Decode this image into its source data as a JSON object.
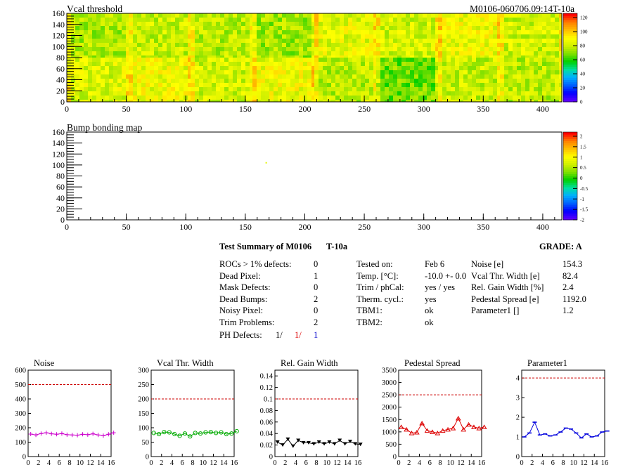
{
  "header": {
    "vcal_title": "Vcal threshold",
    "module_label": "M0106-060706.09:14T-10a",
    "bump_title": "Bump bonding map"
  },
  "maps": {
    "x_ticks": [
      0,
      50,
      100,
      150,
      200,
      250,
      300,
      350,
      400
    ],
    "y_ticks": [
      0,
      20,
      40,
      60,
      80,
      100,
      120,
      140,
      160
    ],
    "xlim": [
      0,
      416
    ],
    "ylim": [
      0,
      160
    ],
    "vcal_scale_ticks": [
      "0",
      "20",
      "40",
      "60",
      "80",
      "100",
      "120"
    ],
    "bump_scale_ticks": [
      "-2",
      "-1.5",
      "-1",
      "-0.5",
      "0",
      "0.5",
      "1",
      "1.5",
      "2"
    ],
    "palette": [
      "#5a00ff",
      "#0000ff",
      "#0060ff",
      "#00b0ff",
      "#00e0a0",
      "#00d000",
      "#80e000",
      "#d0f000",
      "#ffff00",
      "#ffc000",
      "#ff8000",
      "#ff0000"
    ]
  },
  "summary": {
    "title": "Test Summary of M0106",
    "temp_tag": "T-10a",
    "grade_label": "GRADE:  A",
    "defects": [
      {
        "label": "ROCs > 1% defects:",
        "value": "0"
      },
      {
        "label": "Dead Pixel:",
        "value": "1"
      },
      {
        "label": "Mask Defects:",
        "value": "0"
      },
      {
        "label": "Dead Bumps:",
        "value": "2"
      },
      {
        "label": "Noisy Pixel:",
        "value": "0"
      },
      {
        "label": "Trim Problems:",
        "value": "2"
      }
    ],
    "ph_label": "PH Defects:",
    "ph_values": [
      {
        "value": "1/",
        "color": "#000000"
      },
      {
        "value": "1/",
        "color": "#dd0000"
      },
      {
        "value": "1",
        "color": "#0000cc"
      }
    ],
    "conditions": [
      {
        "label": "Tested on:",
        "value": "Feb 6"
      },
      {
        "label": "Temp. [°C]:",
        "value": "-10.0 +- 0.0"
      },
      {
        "label": "Trim / phCal:",
        "value": "yes / yes"
      },
      {
        "label": "Therm. cycl.:",
        "value": "yes"
      },
      {
        "label": "TBM1:",
        "value": "ok"
      },
      {
        "label": "TBM2:",
        "value": "ok"
      }
    ],
    "parameters": [
      {
        "label": "Noise [e]",
        "value": "154.3"
      },
      {
        "label": "Vcal Thr. Width [e]",
        "value": "82.4"
      },
      {
        "label": "Rel. Gain Width [%]",
        "value": "2.4"
      },
      {
        "label": "Pedestal Spread [e]",
        "value": "1192.0"
      },
      {
        "label": "Parameter1 []",
        "value": "1.2"
      }
    ]
  },
  "chart_data": [
    {
      "type": "heatmap",
      "title": "Vcal threshold",
      "xlim": [
        0,
        416
      ],
      "ylim": [
        0,
        160
      ],
      "z_range": [
        0,
        130
      ],
      "roc_grid": {
        "cols": 8,
        "rows": 2
      },
      "roc_mean_level": [
        [
          78,
          82,
          80,
          76,
          88,
          85,
          90,
          84
        ],
        [
          86,
          90,
          84,
          90,
          80,
          70,
          82,
          80
        ]
      ]
    },
    {
      "type": "heatmap",
      "title": "Bump bonding map",
      "xlim": [
        0,
        416
      ],
      "ylim": [
        0,
        160
      ],
      "z_range": [
        -2,
        2
      ],
      "points": [
        {
          "x": 167,
          "y": 104,
          "z": 0.7
        }
      ]
    },
    {
      "type": "scatter",
      "title": "Noise",
      "color": "#cc00cc",
      "marker": "cross",
      "xlim": [
        0,
        16
      ],
      "ylim": [
        0,
        600
      ],
      "x_ticks": [
        0,
        2,
        4,
        6,
        8,
        10,
        12,
        14,
        16
      ],
      "y_ticks": [
        0,
        100,
        200,
        300,
        400,
        500,
        600
      ],
      "threshold": 500,
      "values": [
        156,
        150,
        160,
        165,
        158,
        155,
        160,
        152,
        150,
        148,
        155,
        152,
        158,
        150,
        145,
        155,
        165
      ]
    },
    {
      "type": "scatter",
      "title": "Vcal Thr. Width",
      "color": "#00aa00",
      "marker": "circle",
      "xlim": [
        0,
        16
      ],
      "ylim": [
        0,
        300
      ],
      "x_ticks": [
        0,
        2,
        4,
        6,
        8,
        10,
        12,
        14,
        16
      ],
      "y_ticks": [
        0,
        50,
        100,
        150,
        200,
        250,
        300
      ],
      "threshold": 200,
      "values": [
        82,
        78,
        85,
        84,
        78,
        72,
        80,
        70,
        82,
        80,
        84,
        85,
        82,
        84,
        78,
        80,
        88
      ]
    },
    {
      "type": "scatter",
      "title": "Rel. Gain Width",
      "color": "#000000",
      "marker": "triangle-down",
      "xlim": [
        0,
        16
      ],
      "ylim": [
        0,
        0.15
      ],
      "x_ticks": [
        0,
        2,
        4,
        6,
        8,
        10,
        12,
        14,
        16
      ],
      "y_ticks": [
        0,
        0.02,
        0.04,
        0.06,
        0.08,
        0.1,
        0.12,
        0.14
      ],
      "y_tick_labels": [
        "0",
        "0.02",
        "0.04",
        "0.06",
        "0.08",
        "0.1",
        "0.12",
        "0.14"
      ],
      "threshold": 0.1,
      "values": [
        0.025,
        0.02,
        0.03,
        0.018,
        0.028,
        0.024,
        0.024,
        0.022,
        0.025,
        0.022,
        0.025,
        0.022,
        0.028,
        0.022,
        0.026,
        0.022,
        0.021
      ]
    },
    {
      "type": "scatter",
      "title": "Pedestal Spread",
      "color": "#dd0000",
      "marker": "triangle-up",
      "xlim": [
        0,
        16
      ],
      "ylim": [
        0,
        3500
      ],
      "x_ticks": [
        0,
        2,
        4,
        6,
        8,
        10,
        12,
        14,
        16
      ],
      "y_ticks": [
        0,
        500,
        1000,
        1500,
        2000,
        2500,
        3000,
        3500
      ],
      "threshold": 2500,
      "values": [
        1200,
        1100,
        950,
        980,
        1350,
        1050,
        1000,
        950,
        1050,
        1100,
        1150,
        1550,
        1100,
        1300,
        1200,
        1150,
        1200
      ]
    },
    {
      "type": "scatter",
      "title": "Parameter1",
      "color": "#0000dd",
      "marker": "dash",
      "xlim": [
        0,
        16
      ],
      "ylim": [
        0,
        4.4
      ],
      "x_ticks": [
        0,
        2,
        4,
        6,
        8,
        10,
        12,
        14,
        16
      ],
      "y_ticks": [
        0,
        1,
        2,
        3,
        4
      ],
      "threshold": 4,
      "values": [
        1.0,
        1.2,
        1.75,
        1.1,
        1.15,
        1.05,
        1.1,
        1.25,
        1.45,
        1.4,
        1.2,
        0.95,
        1.15,
        1.0,
        1.05,
        1.25,
        1.3
      ]
    }
  ]
}
